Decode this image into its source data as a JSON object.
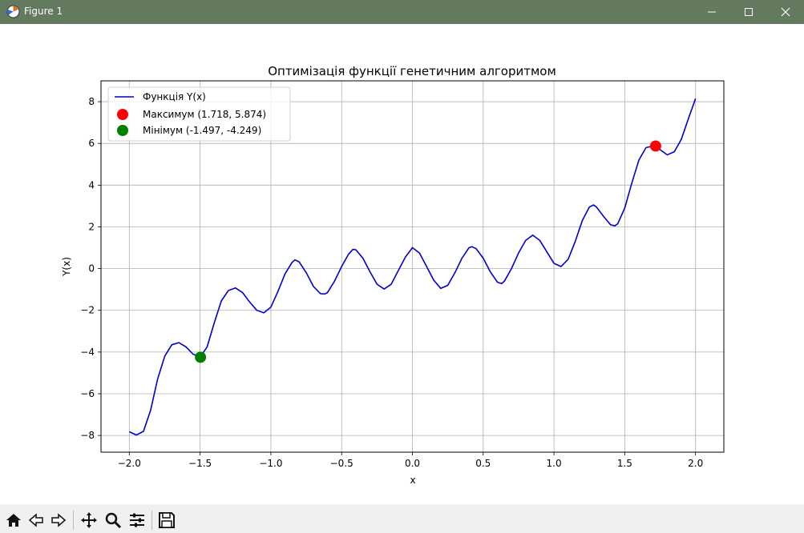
{
  "window": {
    "title": "Figure 1"
  },
  "toolbar": {
    "icons": [
      "home-icon",
      "back-icon",
      "forward-icon",
      "pan-icon",
      "zoom-icon",
      "configure-subplots-icon",
      "save-icon"
    ]
  },
  "colors": {
    "titlebar": "#637a5f",
    "curve": "#0000cc",
    "max": "#ff0000",
    "min": "#008000",
    "grid": "#b0b0b0"
  },
  "chart_data": {
    "type": "line",
    "title": "Оптимізація функції генетичним алгоритмом",
    "xlabel": "x",
    "ylabel": "Y(x)",
    "xlim": [
      -2.2,
      2.2
    ],
    "ylim": [
      -8.8,
      9.0
    ],
    "grid": true,
    "legend_position": "top-left",
    "x_ticks": [
      "−2.0",
      "−1.5",
      "−1.0",
      "−0.5",
      "0.0",
      "0.5",
      "1.0",
      "1.5",
      "2.0"
    ],
    "y_ticks": [
      "−8",
      "−6",
      "−4",
      "−2",
      "0",
      "2",
      "4",
      "6",
      "8"
    ],
    "series": [
      {
        "name": "Функція Y(x)",
        "points": [
          [
            -2.0,
            -7.82
          ],
          [
            -1.95,
            -7.98
          ],
          [
            -1.9,
            -7.8
          ],
          [
            -1.85,
            -6.8
          ],
          [
            -1.8,
            -5.3
          ],
          [
            -1.75,
            -4.2
          ],
          [
            -1.7,
            -3.65
          ],
          [
            -1.65,
            -3.55
          ],
          [
            -1.6,
            -3.75
          ],
          [
            -1.55,
            -4.1
          ],
          [
            -1.5,
            -4.25
          ],
          [
            -1.45,
            -3.75
          ],
          [
            -1.4,
            -2.6
          ],
          [
            -1.35,
            -1.55
          ],
          [
            -1.3,
            -1.05
          ],
          [
            -1.25,
            -0.93
          ],
          [
            -1.2,
            -1.15
          ],
          [
            -1.15,
            -1.6
          ],
          [
            -1.1,
            -2.0
          ],
          [
            -1.05,
            -2.12
          ],
          [
            -1.0,
            -1.85
          ],
          [
            -0.95,
            -1.1
          ],
          [
            -0.9,
            -0.25
          ],
          [
            -0.85,
            0.3
          ],
          [
            -0.83,
            0.42
          ],
          [
            -0.8,
            0.32
          ],
          [
            -0.75,
            -0.2
          ],
          [
            -0.7,
            -0.85
          ],
          [
            -0.65,
            -1.2
          ],
          [
            -0.62,
            -1.22
          ],
          [
            -0.6,
            -1.15
          ],
          [
            -0.55,
            -0.6
          ],
          [
            -0.5,
            0.1
          ],
          [
            -0.45,
            0.7
          ],
          [
            -0.42,
            0.92
          ],
          [
            -0.4,
            0.9
          ],
          [
            -0.35,
            0.5
          ],
          [
            -0.3,
            -0.15
          ],
          [
            -0.25,
            -0.75
          ],
          [
            -0.2,
            -0.98
          ],
          [
            -0.15,
            -0.75
          ],
          [
            -0.1,
            -0.1
          ],
          [
            -0.05,
            0.55
          ],
          [
            0.0,
            1.0
          ],
          [
            0.05,
            0.75
          ],
          [
            0.1,
            0.1
          ],
          [
            0.15,
            -0.55
          ],
          [
            0.2,
            -0.95
          ],
          [
            0.25,
            -0.8
          ],
          [
            0.3,
            -0.2
          ],
          [
            0.35,
            0.5
          ],
          [
            0.4,
            1.0
          ],
          [
            0.42,
            1.05
          ],
          [
            0.45,
            0.95
          ],
          [
            0.5,
            0.5
          ],
          [
            0.55,
            -0.15
          ],
          [
            0.6,
            -0.65
          ],
          [
            0.63,
            -0.72
          ],
          [
            0.65,
            -0.6
          ],
          [
            0.7,
            0.0
          ],
          [
            0.75,
            0.75
          ],
          [
            0.8,
            1.35
          ],
          [
            0.85,
            1.6
          ],
          [
            0.9,
            1.35
          ],
          [
            0.95,
            0.8
          ],
          [
            1.0,
            0.25
          ],
          [
            1.05,
            0.1
          ],
          [
            1.1,
            0.45
          ],
          [
            1.15,
            1.3
          ],
          [
            1.2,
            2.3
          ],
          [
            1.25,
            2.95
          ],
          [
            1.28,
            3.05
          ],
          [
            1.3,
            2.95
          ],
          [
            1.35,
            2.5
          ],
          [
            1.4,
            2.1
          ],
          [
            1.43,
            2.05
          ],
          [
            1.45,
            2.15
          ],
          [
            1.5,
            2.9
          ],
          [
            1.55,
            4.1
          ],
          [
            1.6,
            5.2
          ],
          [
            1.65,
            5.8
          ],
          [
            1.7,
            5.87
          ],
          [
            1.718,
            5.874
          ],
          [
            1.75,
            5.7
          ],
          [
            1.8,
            5.45
          ],
          [
            1.85,
            5.6
          ],
          [
            1.9,
            6.2
          ],
          [
            1.95,
            7.2
          ],
          [
            2.0,
            8.15
          ]
        ]
      },
      {
        "name": "Максимум (1.718, 5.874)",
        "points": [
          [
            1.718,
            5.874
          ]
        ]
      },
      {
        "name": "Мінімум (-1.497, -4.249)",
        "points": [
          [
            -1.497,
            -4.249
          ]
        ]
      }
    ]
  }
}
